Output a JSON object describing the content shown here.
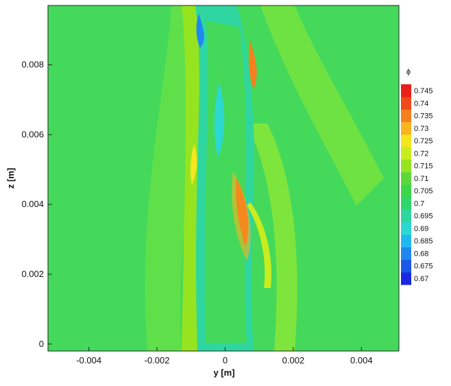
{
  "chart_data": {
    "type": "contour",
    "xlabel": "y [m]",
    "ylabel": "z [m]",
    "xlim": [
      -0.0052,
      0.0051
    ],
    "ylim": [
      -0.0002,
      0.0097
    ],
    "xticks": [
      -0.004,
      -0.002,
      0,
      0.002,
      0.004
    ],
    "yticks": [
      0,
      0.002,
      0.004,
      0.006,
      0.008
    ],
    "colorbar": {
      "label": "ϕ",
      "levels": [
        0.67,
        0.675,
        0.68,
        0.685,
        0.69,
        0.695,
        0.7,
        0.705,
        0.71,
        0.715,
        0.72,
        0.725,
        0.73,
        0.735,
        0.74,
        0.745
      ],
      "colors": [
        "#1a28e0",
        "#1c58e8",
        "#1f88f0",
        "#20b8f0",
        "#2cd8d2",
        "#2fd6a0",
        "#2fd66b",
        "#3cd64a",
        "#5cd83a",
        "#96e41f",
        "#c8ec1e",
        "#f5e61e",
        "#f9b41f",
        "#f5801f",
        "#f04a1c",
        "#e8201a"
      ]
    }
  }
}
